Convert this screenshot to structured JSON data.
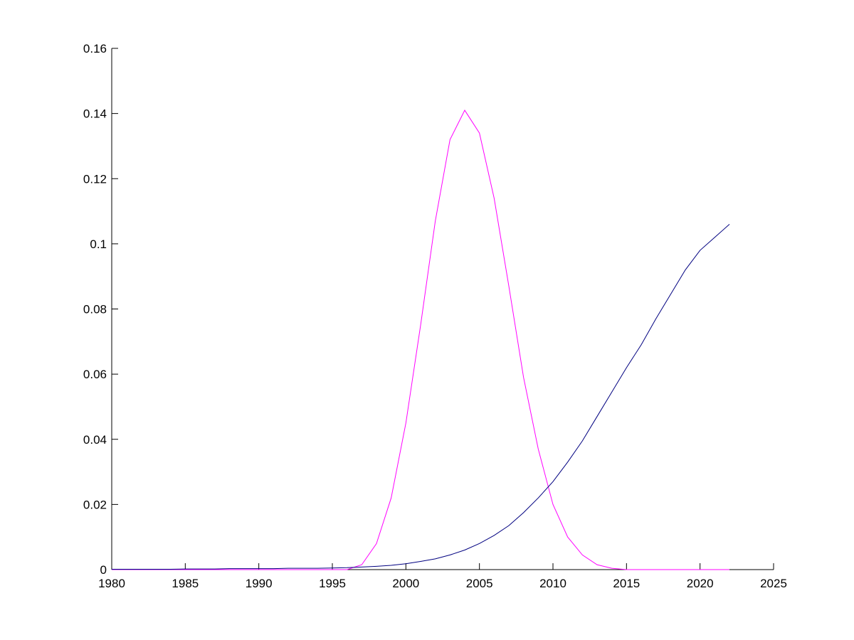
{
  "chart_data": {
    "type": "line",
    "x": [
      1980,
      1981,
      1982,
      1983,
      1984,
      1985,
      1986,
      1987,
      1988,
      1989,
      1990,
      1991,
      1992,
      1993,
      1994,
      1995,
      1996,
      1997,
      1998,
      1999,
      2000,
      2001,
      2002,
      2003,
      2004,
      2005,
      2006,
      2007,
      2008,
      2009,
      2010,
      2011,
      2012,
      2013,
      2014,
      2015,
      2016,
      2017,
      2018,
      2019,
      2020,
      2021,
      2022
    ],
    "series": [
      {
        "color": "#ff00ff",
        "values": [
          0,
          0,
          0,
          0,
          0,
          0,
          0,
          0,
          0,
          0,
          0,
          0,
          0,
          0,
          0,
          0,
          0,
          0.0015,
          0.008,
          0.022,
          0.045,
          0.075,
          0.107,
          0.132,
          0.141,
          0.134,
          0.114,
          0.087,
          0.059,
          0.037,
          0.02,
          0.01,
          0.0045,
          0.0015,
          0.0004,
          0,
          0,
          0,
          0,
          0,
          0,
          0,
          0
        ]
      },
      {
        "color": "#000080",
        "values": [
          0.0001,
          0.0001,
          0.0001,
          0.0001,
          0.0001,
          0.0002,
          0.0002,
          0.0002,
          0.0003,
          0.0003,
          0.0003,
          0.0003,
          0.0004,
          0.0004,
          0.0004,
          0.0005,
          0.0006,
          0.0008,
          0.001,
          0.0013,
          0.0018,
          0.0025,
          0.0033,
          0.0045,
          0.006,
          0.008,
          0.0105,
          0.0135,
          0.0175,
          0.022,
          0.027,
          0.033,
          0.0395,
          0.047,
          0.0545,
          0.062,
          0.069,
          0.077,
          0.0845,
          0.092,
          0.098,
          0.102,
          0.106
        ]
      }
    ],
    "xlim": [
      1980,
      2025
    ],
    "xticks": [
      1980,
      1985,
      1990,
      1995,
      2000,
      2005,
      2010,
      2015,
      2020,
      2025
    ],
    "ylim": [
      0,
      0.16
    ],
    "yticks": [
      0,
      0.02,
      0.04,
      0.06,
      0.08,
      0.1,
      0.12,
      0.14,
      0.16
    ]
  }
}
